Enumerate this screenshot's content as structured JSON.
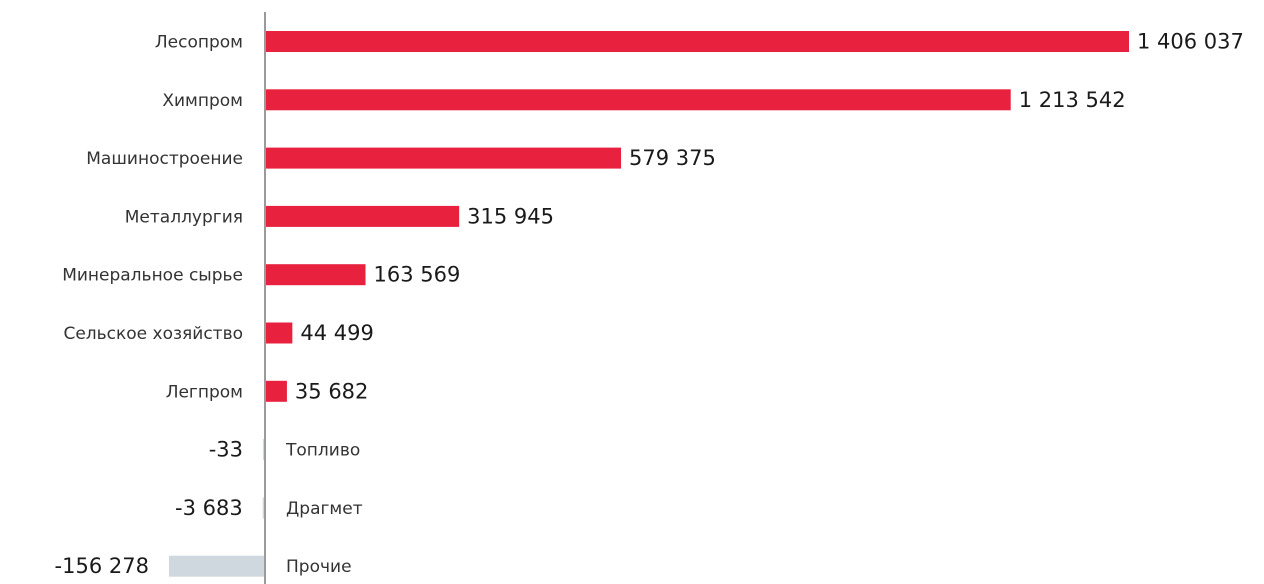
{
  "chart_data": {
    "type": "bar",
    "orientation": "horizontal",
    "categories": [
      "Лесопром",
      "Химпром",
      "Машиностроение",
      "Металлургия",
      "Минеральное сырье",
      "Сельское хозяйство",
      "Легпром",
      "Топливо",
      "Драгмет",
      "Прочие"
    ],
    "values": [
      1406037,
      1213542,
      579375,
      315945,
      163569,
      44499,
      35682,
      -33,
      -3683,
      -156278
    ],
    "value_labels": [
      "1 406 037",
      "1 213 542",
      "579 375",
      "315 945",
      "163 569",
      "44 499",
      "35 682",
      "-33",
      "-3 683",
      "-156 278"
    ],
    "title": "",
    "xlabel": "",
    "ylabel": "",
    "xlim": [
      -156278,
      1406037
    ],
    "grid": false,
    "legend": "none",
    "colors": {
      "positive": "#e8213f",
      "negative": "#cfd8de",
      "axis": "#9a9a9a"
    }
  }
}
